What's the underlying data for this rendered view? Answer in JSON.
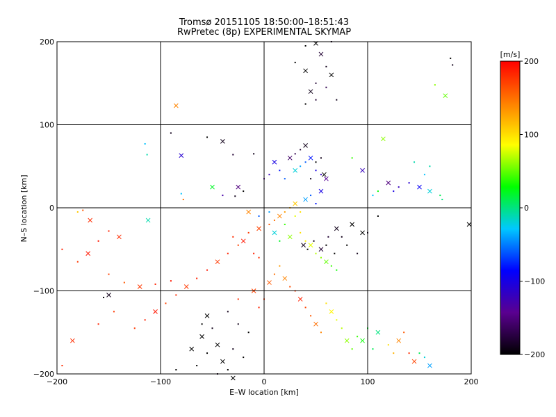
{
  "chart_data": {
    "type": "scatter",
    "title": "Tromsø 20151105 18:50:00–18:51:43",
    "subtitle": "RwPretec (8p) EXPERIMENTAL SKYMAP",
    "xlabel": "E–W location [km]",
    "ylabel": "N–S location [km]",
    "xlim": [
      -200,
      200
    ],
    "ylim": [
      -200,
      200
    ],
    "x_ticks": [
      -200,
      -100,
      0,
      100,
      200
    ],
    "y_ticks": [
      -200,
      -100,
      0,
      100,
      200
    ],
    "grid": true,
    "marker_types": [
      "x",
      "dot"
    ],
    "colorbar": {
      "label": "[m/s]",
      "range": [
        -200,
        200
      ],
      "ticks": [
        200,
        100,
        0,
        -100,
        -200
      ],
      "colormap": "rainbow-black-to-red",
      "color_stops": [
        "#000000",
        "#5a0090",
        "#0000ff",
        "#00c8ff",
        "#00ff00",
        "#ffff00",
        "#ff7f00",
        "#ff0000"
      ]
    },
    "series": [
      {
        "values": [
          [
            -85,
            123,
            140
          ],
          [
            -180,
            -5,
            110
          ],
          [
            -175,
            -3,
            160
          ],
          [
            -168,
            -15,
            180
          ],
          [
            -160,
            -40,
            190
          ],
          [
            -150,
            -28,
            185
          ],
          [
            -140,
            -35,
            180
          ],
          [
            -195,
            -50,
            185
          ],
          [
            -180,
            -65,
            175
          ],
          [
            -170,
            -55,
            190
          ],
          [
            -150,
            -80,
            170
          ],
          [
            -135,
            -90,
            160
          ],
          [
            -120,
            -95,
            175
          ],
          [
            -105,
            -92,
            185
          ],
          [
            -90,
            -88,
            190
          ],
          [
            -185,
            -160,
            180
          ],
          [
            -160,
            -140,
            185
          ],
          [
            -145,
            -125,
            175
          ],
          [
            -112,
            -15,
            -10
          ],
          [
            -115,
            77,
            -30
          ],
          [
            -90,
            90,
            -190
          ],
          [
            -80,
            63,
            -110
          ],
          [
            -78,
            10,
            150
          ],
          [
            -80,
            17,
            -30
          ],
          [
            -50,
            25,
            20
          ],
          [
            -30,
            64,
            -180
          ],
          [
            -10,
            65,
            -190
          ],
          [
            -25,
            25,
            -150
          ],
          [
            -20,
            20,
            -200
          ],
          [
            -28,
            14,
            -190
          ],
          [
            -15,
            -5,
            140
          ],
          [
            -40,
            15,
            -130
          ],
          [
            -55,
            85,
            -200
          ],
          [
            -40,
            80,
            -190
          ],
          [
            -113,
            64,
            -10
          ],
          [
            -155,
            -108,
            -200
          ],
          [
            -150,
            -105,
            -190
          ],
          [
            -195,
            -190,
            180
          ],
          [
            -85,
            -195,
            -200
          ],
          [
            -30,
            -205,
            -200
          ],
          [
            -60,
            -140,
            -200
          ],
          [
            -50,
            -145,
            -190
          ],
          [
            -45,
            -165,
            -200
          ],
          [
            -55,
            -175,
            -200
          ],
          [
            -65,
            -190,
            -200
          ],
          [
            -40,
            -185,
            -200
          ],
          [
            -45,
            -200,
            -190
          ],
          [
            -35,
            -195,
            -200
          ],
          [
            -60,
            -155,
            -200
          ],
          [
            -30,
            -170,
            -190
          ],
          [
            -20,
            -180,
            -200
          ],
          [
            -70,
            -170,
            -200
          ],
          [
            -25,
            -140,
            -190
          ],
          [
            -15,
            -150,
            -200
          ],
          [
            -55,
            -130,
            -200
          ],
          [
            -35,
            -125,
            -190
          ],
          [
            -25,
            -110,
            180
          ],
          [
            -10,
            -100,
            170
          ],
          [
            -5,
            -120,
            185
          ],
          [
            0,
            -110,
            175
          ],
          [
            5,
            -90,
            160
          ],
          [
            10,
            -80,
            150
          ],
          [
            15,
            -70,
            130
          ],
          [
            20,
            -85,
            140
          ],
          [
            25,
            -95,
            165
          ],
          [
            30,
            -100,
            175
          ],
          [
            35,
            -110,
            185
          ],
          [
            40,
            -120,
            170
          ],
          [
            45,
            -130,
            160
          ],
          [
            50,
            -140,
            150
          ],
          [
            55,
            -150,
            140
          ],
          [
            60,
            -115,
            100
          ],
          [
            65,
            -125,
            90
          ],
          [
            70,
            -135,
            80
          ],
          [
            75,
            -145,
            70
          ],
          [
            80,
            -160,
            60
          ],
          [
            85,
            -170,
            50
          ],
          [
            90,
            -155,
            40
          ],
          [
            95,
            -160,
            30
          ],
          [
            100,
            -145,
            20
          ],
          [
            105,
            -170,
            10
          ],
          [
            110,
            -150,
            0
          ],
          [
            120,
            -165,
            100
          ],
          [
            125,
            -175,
            120
          ],
          [
            130,
            -160,
            140
          ],
          [
            135,
            -150,
            160
          ],
          [
            140,
            -175,
            180
          ],
          [
            145,
            -185,
            170
          ],
          [
            150,
            -175,
            10
          ],
          [
            155,
            -180,
            -20
          ],
          [
            160,
            -190,
            -40
          ],
          [
            -5,
            -60,
            180
          ],
          [
            -10,
            -55,
            185
          ],
          [
            -20,
            -40,
            190
          ],
          [
            -30,
            -35,
            180
          ],
          [
            -15,
            -30,
            175
          ],
          [
            -5,
            -25,
            170
          ],
          [
            5,
            -20,
            160
          ],
          [
            10,
            -15,
            150
          ],
          [
            15,
            -10,
            140
          ],
          [
            20,
            -5,
            130
          ],
          [
            25,
            0,
            120
          ],
          [
            30,
            5,
            110
          ],
          [
            35,
            -30,
            100
          ],
          [
            40,
            -40,
            90
          ],
          [
            45,
            -45,
            80
          ],
          [
            50,
            -55,
            70
          ],
          [
            55,
            -60,
            60
          ],
          [
            60,
            -65,
            50
          ],
          [
            65,
            -70,
            40
          ],
          [
            70,
            -75,
            30
          ],
          [
            30,
            45,
            -20
          ],
          [
            35,
            50,
            -40
          ],
          [
            40,
            55,
            -60
          ],
          [
            45,
            60,
            -80
          ],
          [
            50,
            45,
            -100
          ],
          [
            55,
            40,
            -120
          ],
          [
            60,
            35,
            -140
          ],
          [
            20,
            35,
            -60
          ],
          [
            15,
            45,
            -80
          ],
          [
            10,
            55,
            -100
          ],
          [
            5,
            40,
            -120
          ],
          [
            0,
            35,
            -140
          ],
          [
            25,
            60,
            -160
          ],
          [
            30,
            65,
            -170
          ],
          [
            35,
            70,
            -180
          ],
          [
            40,
            75,
            -190
          ],
          [
            50,
            55,
            -200
          ],
          [
            55,
            60,
            -190
          ],
          [
            58,
            40,
            -200
          ],
          [
            45,
            35,
            -190
          ],
          [
            40,
            125,
            -200
          ],
          [
            45,
            140,
            -190
          ],
          [
            50,
            150,
            -180
          ],
          [
            60,
            145,
            -170
          ],
          [
            65,
            160,
            -200
          ],
          [
            60,
            170,
            -190
          ],
          [
            50,
            130,
            -180
          ],
          [
            40,
            165,
            -200
          ],
          [
            70,
            130,
            -190
          ],
          [
            30,
            175,
            -200
          ],
          [
            55,
            185,
            -180
          ],
          [
            40,
            195,
            -200
          ],
          [
            65,
            200,
            -190
          ],
          [
            50,
            198,
            -200
          ],
          [
            180,
            180,
            -200
          ],
          [
            182,
            172,
            -190
          ],
          [
            175,
            135,
            50
          ],
          [
            165,
            148,
            60
          ],
          [
            160,
            50,
            -10
          ],
          [
            150,
            25,
            -90
          ],
          [
            140,
            30,
            -110
          ],
          [
            130,
            25,
            -120
          ],
          [
            120,
            30,
            -150
          ],
          [
            125,
            20,
            -100
          ],
          [
            110,
            20,
            30
          ],
          [
            95,
            45,
            -120
          ],
          [
            85,
            60,
            40
          ],
          [
            105,
            15,
            -30
          ],
          [
            115,
            83,
            60
          ],
          [
            170,
            15,
            10
          ],
          [
            172,
            10,
            0
          ],
          [
            160,
            20,
            -20
          ],
          [
            145,
            55,
            -10
          ],
          [
            155,
            40,
            -30
          ],
          [
            198,
            -20,
            -200
          ],
          [
            110,
            -10,
            -200
          ],
          [
            100,
            -30,
            -190
          ],
          [
            85,
            -20,
            -200
          ],
          [
            75,
            -35,
            -190
          ],
          [
            60,
            -45,
            -200
          ],
          [
            55,
            -50,
            -180
          ],
          [
            48,
            -40,
            -190
          ],
          [
            42,
            -50,
            -200
          ],
          [
            38,
            -45,
            -190
          ],
          [
            62,
            -35,
            -180
          ],
          [
            68,
            -55,
            -200
          ],
          [
            70,
            -25,
            -190
          ],
          [
            80,
            -45,
            -200
          ],
          [
            90,
            -55,
            -190
          ],
          [
            95,
            -30,
            -200
          ],
          [
            -5,
            -10,
            -60
          ],
          [
            5,
            -5,
            -40
          ],
          [
            10,
            -30,
            -20
          ],
          [
            15,
            -40,
            20
          ],
          [
            20,
            -20,
            40
          ],
          [
            25,
            -35,
            60
          ],
          [
            30,
            -10,
            80
          ],
          [
            35,
            -5,
            100
          ],
          [
            40,
            10,
            -40
          ],
          [
            45,
            15,
            -60
          ],
          [
            50,
            5,
            -80
          ],
          [
            55,
            20,
            -100
          ],
          [
            -25,
            -45,
            170
          ],
          [
            -35,
            -55,
            185
          ],
          [
            -45,
            -65,
            175
          ],
          [
            -55,
            -75,
            190
          ],
          [
            -65,
            -85,
            185
          ],
          [
            -75,
            -95,
            175
          ],
          [
            -85,
            -105,
            180
          ],
          [
            -95,
            -115,
            170
          ],
          [
            -105,
            -125,
            190
          ],
          [
            -115,
            -135,
            185
          ],
          [
            -125,
            -145,
            175
          ]
        ]
      }
    ]
  }
}
